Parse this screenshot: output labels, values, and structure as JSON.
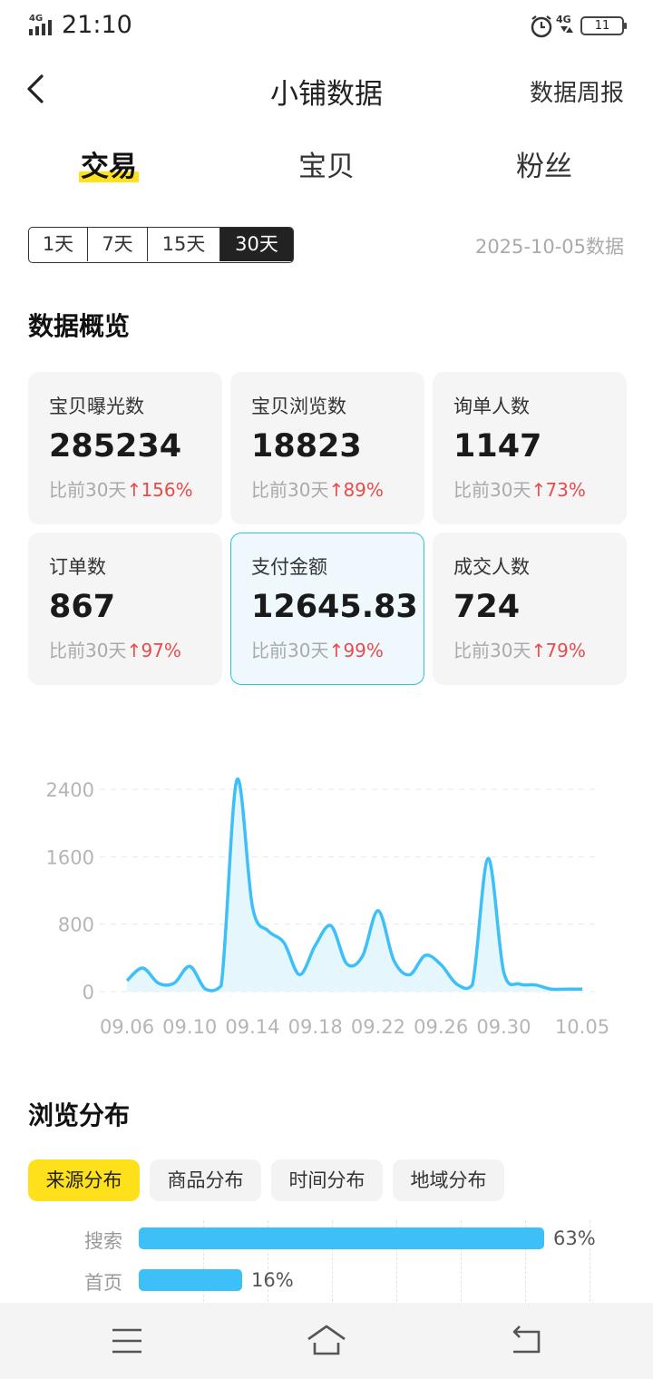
{
  "status_bar": {
    "time": "21:10",
    "network": "4G",
    "battery": "11",
    "icons": [
      "signal-icon",
      "alarm-icon",
      "network-4g-icon",
      "battery-icon"
    ]
  },
  "header": {
    "title": "小铺数据",
    "right_link": "数据周报",
    "back_icon": "back-arrow-icon"
  },
  "main_tabs": [
    {
      "label": "交易",
      "active": true
    },
    {
      "label": "宝贝",
      "active": false
    },
    {
      "label": "粉丝",
      "active": false
    }
  ],
  "range": {
    "options": [
      "1天",
      "7天",
      "15天",
      "30天"
    ],
    "selected": "30天",
    "date_text": "2025-10-05数据"
  },
  "overview": {
    "title": "数据概览",
    "cards": [
      {
        "label": "宝贝曝光数",
        "value": "285234",
        "compare": "比前30天",
        "change": "156%"
      },
      {
        "label": "宝贝浏览数",
        "value": "18823",
        "compare": "比前30天",
        "change": "89%"
      },
      {
        "label": "询单人数",
        "value": "1147",
        "compare": "比前30天",
        "change": "73%"
      },
      {
        "label": "订单数",
        "value": "867",
        "compare": "比前30天",
        "change": "97%"
      },
      {
        "label": "支付金额",
        "value": "12645.83",
        "compare": "比前30天",
        "change": "99%",
        "selected": true
      },
      {
        "label": "成交人数",
        "value": "724",
        "compare": "比前30天",
        "change": "79%"
      }
    ],
    "up_arrow": "↑"
  },
  "chart_data": {
    "type": "area",
    "x": [
      "09.06",
      "09.07",
      "09.08",
      "09.09",
      "09.10",
      "09.11",
      "09.12",
      "09.13",
      "09.14",
      "09.15",
      "09.16",
      "09.17",
      "09.18",
      "09.19",
      "09.20",
      "09.21",
      "09.22",
      "09.23",
      "09.24",
      "09.25",
      "09.26",
      "09.27",
      "09.28",
      "09.29",
      "09.30",
      "10.01",
      "10.02",
      "10.03",
      "10.04",
      "10.05"
    ],
    "values": [
      130,
      280,
      100,
      100,
      300,
      30,
      70,
      2510,
      1000,
      720,
      580,
      200,
      550,
      780,
      330,
      420,
      960,
      370,
      200,
      430,
      320,
      90,
      80,
      1580,
      230,
      90,
      80,
      30,
      30,
      30
    ],
    "xtick_labels": [
      "09.06",
      "09.10",
      "09.14",
      "09.18",
      "09.22",
      "09.26",
      "09.30",
      "10.05"
    ],
    "ytick_labels": [
      "0",
      "800",
      "1600",
      "2400"
    ],
    "ylim": [
      0,
      2400
    ],
    "title": "",
    "xlabel": "",
    "ylabel": "",
    "grid": "horizontal dashed",
    "line_color": "#3DBFF8",
    "fill_color": "#E6F6FD"
  },
  "browse": {
    "title": "浏览分布",
    "tabs": [
      {
        "label": "来源分布",
        "active": true
      },
      {
        "label": "商品分布",
        "active": false
      },
      {
        "label": "时间分布",
        "active": false
      },
      {
        "label": "地域分布",
        "active": false
      }
    ],
    "bars": [
      {
        "label": "搜索",
        "value": 63,
        "pct": "63%"
      },
      {
        "label": "首页",
        "value": 16,
        "pct": "16%"
      }
    ],
    "bar_color": "#3DBFF8"
  },
  "bottom_nav": {
    "icons": [
      "menu-icon",
      "home-icon",
      "back-icon"
    ]
  },
  "colors": {
    "accent": "#FFE11B",
    "up": "#E94B4B",
    "selected_border": "#2FC0DB"
  }
}
